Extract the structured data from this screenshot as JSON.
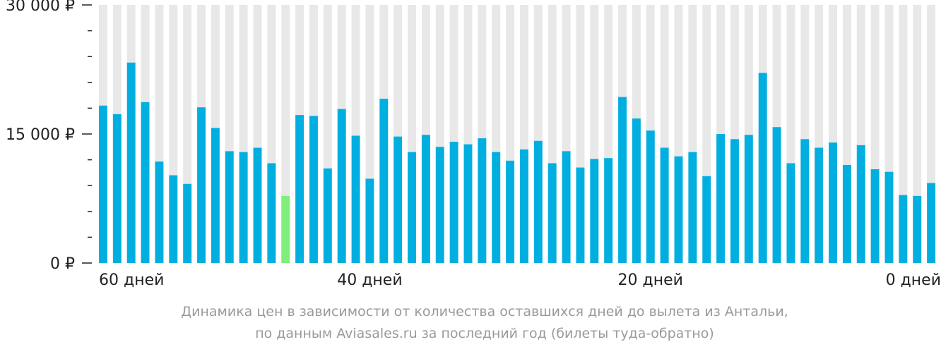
{
  "chart_data": {
    "type": "bar",
    "y_ticks": [
      "30 000 ₽",
      "15 000 ₽",
      "0 ₽"
    ],
    "y_tick_values": [
      30000,
      15000,
      0
    ],
    "ylim": [
      0,
      30000
    ],
    "x_ticks": [
      {
        "label": "60 дней",
        "day": 60
      },
      {
        "label": "40 дней",
        "day": 40
      },
      {
        "label": "20 дней",
        "day": 20
      },
      {
        "label": "0 дней",
        "day": 0
      }
    ],
    "days_from": 59,
    "days_to": 0,
    "values": [
      18300,
      17300,
      23300,
      18700,
      11800,
      10200,
      9200,
      18100,
      15700,
      13000,
      12900,
      13400,
      11600,
      7800,
      17200,
      17100,
      11000,
      17900,
      14800,
      9800,
      19100,
      14700,
      12900,
      14900,
      13500,
      14100,
      13800,
      14500,
      12900,
      11900,
      13200,
      14200,
      11600,
      13000,
      11100,
      12100,
      12200,
      19300,
      16800,
      15400,
      13400,
      12400,
      12900,
      10100,
      15000,
      14400,
      14900,
      22100,
      15800,
      11600,
      14400,
      13400,
      14000,
      11400,
      13700,
      10900,
      10600,
      7900,
      7800,
      9300
    ],
    "highlight_index": 13,
    "colors": {
      "bar": "#00afe0",
      "highlight": "#7ef07a",
      "background_column": "#e8e8e8"
    },
    "caption_line1": "Динамика цен в зависимости от количества оставшихся дней до вылета из Антальи,",
    "caption_line2": "по данным Aviasales.ru за последний год (билеты туда-обратно)"
  }
}
